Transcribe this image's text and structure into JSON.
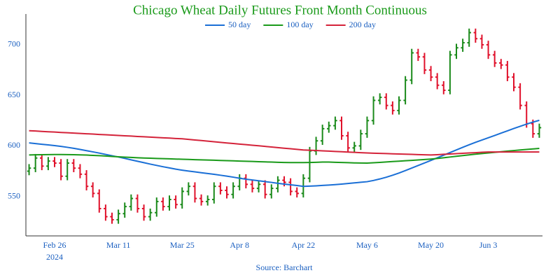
{
  "chart_data": {
    "type": "ohlc",
    "title": "Chicago Wheat Daily Futures Front Month Continuous",
    "source": "Source: Barchart",
    "categories": [
      null,
      null,
      null,
      null,
      "Feb 26",
      null,
      null,
      null,
      null,
      null,
      null,
      null,
      null,
      null,
      "Mar 11",
      null,
      null,
      null,
      null,
      null,
      null,
      null,
      null,
      null,
      "Mar 25",
      null,
      null,
      null,
      null,
      null,
      null,
      null,
      null,
      "Apr 8",
      null,
      null,
      null,
      null,
      null,
      null,
      null,
      null,
      null,
      "Apr 22",
      null,
      null,
      null,
      null,
      null,
      null,
      null,
      null,
      null,
      "May 6",
      null,
      null,
      null,
      null,
      null,
      null,
      null,
      null,
      null,
      "May 20",
      null,
      null,
      null,
      null,
      null,
      null,
      null,
      null,
      "Jun 3",
      null,
      null,
      null,
      null,
      null,
      null,
      null,
      null
    ],
    "x_year_label": "2024",
    "up_color": "#1a8a1a",
    "down_color": "#e0112b",
    "open": [
      575,
      578,
      588,
      580,
      585,
      583,
      570,
      583,
      578,
      572,
      560,
      553,
      538,
      530,
      527,
      533,
      540,
      548,
      538,
      530,
      534,
      545,
      540,
      547,
      542,
      555,
      560,
      548,
      545,
      547,
      560,
      556,
      552,
      560,
      568,
      562,
      558,
      562,
      552,
      558,
      566,
      564,
      555,
      553,
      568,
      595,
      605,
      617,
      620,
      625,
      610,
      598,
      600,
      612,
      625,
      645,
      648,
      640,
      635,
      645,
      665,
      692,
      688,
      675,
      668,
      660,
      655,
      690,
      697,
      702,
      712,
      706,
      700,
      690,
      682,
      680,
      668,
      658,
      640,
      622,
      612
    ],
    "high": [
      582,
      592,
      592,
      589,
      589,
      587,
      587,
      587,
      582,
      576,
      564,
      557,
      542,
      534,
      537,
      544,
      552,
      552,
      542,
      538,
      549,
      549,
      551,
      551,
      559,
      564,
      564,
      552,
      551,
      564,
      564,
      560,
      564,
      572,
      572,
      566,
      566,
      566,
      562,
      570,
      570,
      568,
      559,
      572,
      599,
      609,
      621,
      624,
      629,
      629,
      614,
      604,
      616,
      629,
      649,
      652,
      652,
      644,
      649,
      669,
      696,
      696,
      692,
      679,
      672,
      664,
      694,
      701,
      706,
      716,
      716,
      710,
      704,
      694,
      686,
      684,
      672,
      662,
      644,
      626,
      622
    ],
    "low": [
      571,
      574,
      576,
      576,
      579,
      566,
      566,
      574,
      568,
      556,
      549,
      534,
      526,
      523,
      523,
      529,
      536,
      534,
      526,
      526,
      530,
      536,
      536,
      538,
      538,
      551,
      544,
      541,
      541,
      543,
      552,
      548,
      548,
      556,
      558,
      554,
      554,
      548,
      548,
      554,
      560,
      551,
      549,
      549,
      564,
      591,
      601,
      613,
      616,
      606,
      594,
      594,
      596,
      608,
      621,
      641,
      636,
      631,
      631,
      641,
      661,
      684,
      671,
      664,
      656,
      651,
      651,
      686,
      693,
      698,
      702,
      696,
      686,
      678,
      676,
      664,
      654,
      636,
      618,
      608,
      608
    ],
    "close": [
      578,
      588,
      580,
      585,
      583,
      570,
      583,
      578,
      572,
      560,
      553,
      538,
      530,
      527,
      533,
      540,
      548,
      538,
      530,
      534,
      545,
      540,
      547,
      542,
      555,
      560,
      548,
      545,
      547,
      560,
      556,
      552,
      560,
      568,
      562,
      558,
      562,
      552,
      558,
      566,
      564,
      555,
      553,
      568,
      595,
      605,
      617,
      620,
      625,
      610,
      598,
      600,
      612,
      625,
      645,
      648,
      640,
      635,
      645,
      665,
      692,
      688,
      675,
      668,
      660,
      655,
      690,
      697,
      702,
      712,
      706,
      700,
      690,
      682,
      680,
      668,
      658,
      640,
      622,
      612,
      618
    ],
    "series": [
      {
        "name": "50 day",
        "color": "#1a6fd6",
        "values": [
          603,
          602.3,
          601.6,
          601,
          600.3,
          599.5,
          598.6,
          597.6,
          596.5,
          595.3,
          594.1,
          592.9,
          591.6,
          590.3,
          589,
          587.6,
          586.2,
          584.8,
          583.4,
          582,
          580.7,
          579.4,
          578.2,
          577,
          576,
          575.1,
          574.3,
          573.5,
          572.7,
          571.9,
          571,
          570.1,
          569.1,
          568,
          567.1,
          566.3,
          565.5,
          564.7,
          563.9,
          563,
          562.2,
          561.5,
          560.8,
          560,
          560.2,
          560.5,
          560.9,
          561.3,
          561.7,
          562.2,
          562.8,
          563.4,
          564,
          564.6,
          565.8,
          567.3,
          569,
          571,
          573.2,
          575.6,
          578.1,
          580.6,
          583.1,
          585.6,
          588.2,
          590.8,
          593.4,
          596,
          598.6,
          601.1,
          603.5,
          605.8,
          608,
          610.3,
          612.6,
          614.9,
          617.2,
          619.4,
          621.5,
          623.5,
          625.3
        ]
      },
      {
        "name": "100 day",
        "color": "#1a9a1a",
        "values": [
          591,
          591.2,
          591.3,
          591.4,
          591.5,
          591.5,
          591.4,
          591.3,
          591.1,
          590.9,
          590.6,
          590.3,
          590,
          589.6,
          589.2,
          588.9,
          588.6,
          588.3,
          588,
          587.8,
          587.6,
          587.4,
          587.2,
          587,
          586.8,
          586.6,
          586.4,
          586.2,
          586,
          585.8,
          585.6,
          585.4,
          585.2,
          585,
          584.8,
          584.6,
          584.4,
          584.2,
          584,
          583.8,
          583.6,
          583.5,
          583.5,
          583.5,
          583.6,
          583.8,
          584,
          584,
          583.8,
          583.6,
          583.4,
          583.2,
          583.1,
          583,
          583.3,
          583.7,
          584.1,
          584.5,
          584.9,
          585.3,
          585.7,
          586.1,
          586.5,
          587,
          587.6,
          588.3,
          589,
          589.7,
          590.4,
          591.1,
          591.8,
          592.4,
          593,
          593.6,
          594.2,
          594.8,
          595.4,
          596,
          596.5,
          597,
          597.5
        ]
      },
      {
        "name": "200 day",
        "color": "#d4233a",
        "values": [
          615,
          614.7,
          614.3,
          614,
          613.7,
          613.3,
          613,
          612.7,
          612.3,
          612,
          611.7,
          611.3,
          611,
          610.7,
          610.3,
          610,
          609.7,
          609.3,
          609,
          608.7,
          608.3,
          608,
          607.7,
          607.3,
          607,
          606.4,
          605.8,
          605.3,
          604.7,
          604.1,
          603.5,
          602.9,
          602.4,
          601.8,
          601.2,
          600.6,
          600.1,
          599.5,
          598.9,
          598.3,
          597.7,
          597.2,
          596.6,
          596,
          595.7,
          595.4,
          595.1,
          594.8,
          594.5,
          594.2,
          593.9,
          593.6,
          593.3,
          593,
          592.8,
          592.6,
          592.4,
          592.2,
          592,
          591.8,
          591.6,
          591.4,
          591.2,
          591,
          591.3,
          591.7,
          592,
          592.3,
          592.7,
          593,
          593.3,
          593.7,
          594,
          594,
          594,
          594,
          594,
          594,
          594,
          594,
          594
        ]
      }
    ],
    "ylim": [
      511,
      730
    ],
    "yticks": [
      550,
      600,
      650,
      700
    ],
    "grid": false,
    "title_color": "#1a9a1a",
    "label_color": "#1a5fc0"
  }
}
